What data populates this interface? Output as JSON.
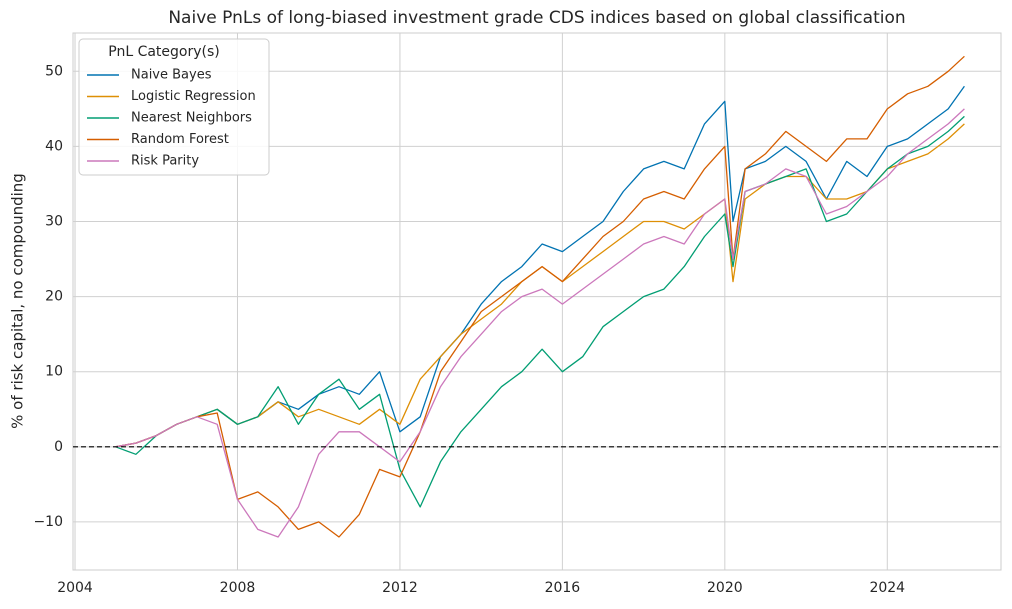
{
  "chart_data": {
    "type": "line",
    "title": "Naive PnLs of long-biased investment grade CDS indices based on global classification",
    "y_label": "% of risk capital, no compounding",
    "legend_title": "PnL Category(s)",
    "legend_position": "upper-left",
    "grid": true,
    "hline": 0,
    "xlim": [
      2003.95,
      2026.8
    ],
    "xticks": [
      2004,
      2008,
      2012,
      2016,
      2020,
      2024
    ],
    "ylim": [
      -16.4,
      55.1
    ],
    "yticks": [
      {
        "value": -10,
        "label": "−10"
      },
      0,
      10,
      20,
      30,
      40,
      50
    ],
    "x": [
      2005.0,
      2005.5,
      2006.0,
      2006.5,
      2007.0,
      2007.5,
      2008.0,
      2008.5,
      2009.0,
      2009.5,
      2010.0,
      2010.5,
      2011.0,
      2011.5,
      2012.0,
      2012.5,
      2013.0,
      2013.5,
      2014.0,
      2014.5,
      2015.0,
      2015.5,
      2016.0,
      2016.5,
      2017.0,
      2017.5,
      2018.0,
      2018.5,
      2019.0,
      2019.5,
      2020.0,
      2020.2,
      2020.5,
      2021.0,
      2021.5,
      2022.0,
      2022.5,
      2023.0,
      2023.5,
      2024.0,
      2024.5,
      2025.0,
      2025.5,
      2025.9
    ],
    "series": [
      {
        "name": "Naive Bayes",
        "color": "#0173b2",
        "values": [
          0,
          0.5,
          1.5,
          3,
          4,
          5,
          3,
          4,
          6,
          5,
          7,
          8,
          7,
          10,
          2,
          4,
          12,
          15,
          19,
          22,
          24,
          27,
          26,
          28,
          30,
          34,
          37,
          38,
          37,
          43,
          46,
          30,
          37,
          38,
          40,
          38,
          33,
          38,
          36,
          40,
          41,
          43,
          45,
          48
        ]
      },
      {
        "name": "Logistic Regression",
        "color": "#de8f05",
        "values": [
          0,
          0.5,
          1.5,
          3,
          4,
          5,
          3,
          4,
          6,
          4,
          5,
          4,
          3,
          5,
          3,
          9,
          12,
          15,
          17,
          19,
          22,
          24,
          22,
          24,
          26,
          28,
          30,
          30,
          29,
          31,
          33,
          22,
          33,
          35,
          36,
          36,
          33,
          33,
          34,
          37,
          38,
          39,
          41,
          43
        ]
      },
      {
        "name": "Nearest Neighbors",
        "color": "#029e73",
        "values": [
          0,
          -1,
          1.5,
          3,
          4,
          5,
          3,
          4,
          8,
          3,
          7,
          9,
          5,
          7,
          -3,
          -8,
          -2,
          2,
          5,
          8,
          10,
          13,
          10,
          12,
          16,
          18,
          20,
          21,
          24,
          28,
          31,
          24,
          34,
          35,
          36,
          37,
          30,
          31,
          34,
          37,
          39,
          40,
          42,
          44
        ]
      },
      {
        "name": "Random Forest",
        "color": "#d55e00",
        "values": [
          0,
          0.5,
          1.5,
          3,
          4,
          4.5,
          -7,
          -6,
          -8,
          -11,
          -10,
          -12,
          -9,
          -3,
          -4,
          2,
          10,
          14,
          18,
          20,
          22,
          24,
          22,
          25,
          28,
          30,
          33,
          34,
          33,
          37,
          40,
          25,
          37,
          39,
          42,
          40,
          38,
          41,
          41,
          45,
          47,
          48,
          50,
          52
        ]
      },
      {
        "name": "Risk Parity",
        "color": "#cc78bc",
        "values": [
          0,
          0.5,
          1.5,
          3,
          4,
          3,
          -7,
          -11,
          -12,
          -8,
          -1,
          2,
          2,
          0,
          -2,
          2,
          8,
          12,
          15,
          18,
          20,
          21,
          19,
          21,
          23,
          25,
          27,
          28,
          27,
          31,
          33,
          25,
          34,
          35,
          37,
          36,
          31,
          32,
          34,
          36,
          39,
          41,
          43,
          45
        ]
      }
    ]
  }
}
